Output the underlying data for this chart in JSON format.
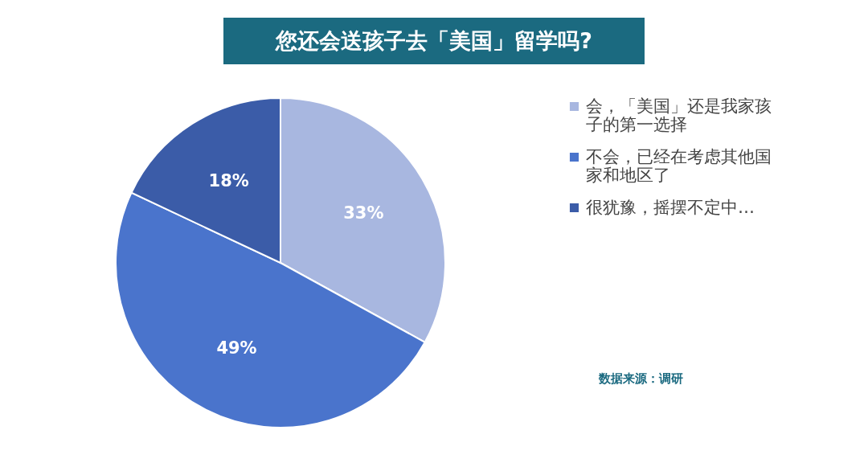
{
  "chart_data": {
    "type": "pie",
    "title": "您还会送孩子去「美国」留学吗?",
    "categories": [
      "会，「美国」还是我家孩子的第一选择",
      "不会，已经在考虑其他国家和地区了",
      "很犹豫，摇摆不定中…"
    ],
    "values": [
      33,
      49,
      18
    ],
    "colors": [
      "#a8b7e0",
      "#4a74cc",
      "#3b5ca8"
    ],
    "value_labels": [
      "33%",
      "49%",
      "18%"
    ],
    "legend": "right",
    "annotations": [
      "数据来源：调研"
    ]
  }
}
